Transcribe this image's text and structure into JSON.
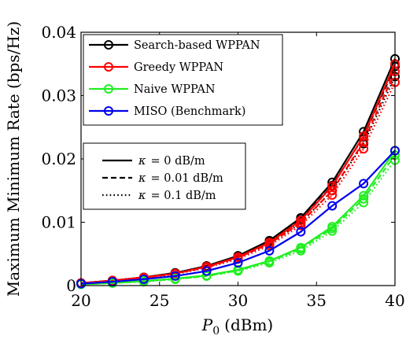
{
  "chart_data": {
    "type": "line",
    "title": "",
    "xlabel_var": "P",
    "xlabel_sub": "0",
    "xlabel_unit": "(dBm)",
    "ylabel": "Maximum Minimum Rate (bps/Hz)",
    "xlim": [
      20,
      40
    ],
    "ylim": [
      0,
      0.04
    ],
    "x_ticks": [
      20,
      25,
      30,
      35,
      40
    ],
    "x_tick_labels": [
      "20",
      "25",
      "30",
      "35",
      "40"
    ],
    "y_ticks": [
      0,
      0.01,
      0.02,
      0.03,
      0.04
    ],
    "y_tick_labels": [
      "0",
      "0.01",
      "0.02",
      "0.03",
      "0.04"
    ],
    "x": [
      20,
      22,
      24,
      26,
      28,
      30,
      32,
      34,
      36,
      38,
      40
    ],
    "grid": false,
    "legend_position": "top-left",
    "series": [
      {
        "name": "Search-based WPPAN",
        "color": "#000000",
        "kappa": "0 dB/m",
        "style": "solid",
        "marker": "circle",
        "values": [
          0.0004,
          0.0008,
          0.0013,
          0.002,
          0.0031,
          0.0047,
          0.0071,
          0.0107,
          0.0163,
          0.0243,
          0.0358
        ]
      },
      {
        "name": "Search-based WPPAN",
        "color": "#000000",
        "kappa": "0.01 dB/m",
        "style": "dashed",
        "marker": "circle",
        "values": [
          0.0004,
          0.0008,
          0.0013,
          0.002,
          0.003,
          0.0046,
          0.0069,
          0.0104,
          0.0158,
          0.0235,
          0.0346
        ]
      },
      {
        "name": "Search-based WPPAN",
        "color": "#000000",
        "kappa": "0.1 dB/m",
        "style": "dotted",
        "marker": "circle",
        "values": [
          0.0004,
          0.0007,
          0.0012,
          0.0019,
          0.0029,
          0.0044,
          0.0066,
          0.0099,
          0.015,
          0.0224,
          0.033
        ]
      },
      {
        "name": "Greedy WPPAN",
        "color": "#ff0000",
        "kappa": "0 dB/m",
        "style": "solid",
        "marker": "circle",
        "values": [
          0.0004,
          0.0008,
          0.0013,
          0.0019,
          0.003,
          0.0045,
          0.0068,
          0.0103,
          0.0157,
          0.0236,
          0.035
        ]
      },
      {
        "name": "Greedy WPPAN",
        "color": "#ff0000",
        "kappa": "0.01 dB/m",
        "style": "dashed",
        "marker": "circle",
        "values": [
          0.0004,
          0.0007,
          0.0012,
          0.0019,
          0.0029,
          0.0044,
          0.0066,
          0.0099,
          0.015,
          0.0227,
          0.0338
        ]
      },
      {
        "name": "Greedy WPPAN",
        "color": "#ff0000",
        "kappa": "0.1 dB/m",
        "style": "dotted",
        "marker": "circle",
        "values": [
          0.0004,
          0.0007,
          0.0012,
          0.0018,
          0.0028,
          0.0042,
          0.0063,
          0.0095,
          0.0143,
          0.0216,
          0.0321
        ]
      },
      {
        "name": "Naive WPPAN",
        "color": "#22ee22",
        "kappa": "0 dB/m",
        "style": "solid",
        "marker": "circle",
        "values": [
          0.0002,
          0.0004,
          0.0007,
          0.0011,
          0.0016,
          0.0025,
          0.0039,
          0.006,
          0.0093,
          0.0142,
          0.0213
        ]
      },
      {
        "name": "Naive WPPAN",
        "color": "#22ee22",
        "kappa": "0.01 dB/m",
        "style": "dashed",
        "marker": "circle",
        "values": [
          0.0002,
          0.0004,
          0.0007,
          0.001,
          0.0015,
          0.0024,
          0.0038,
          0.0058,
          0.009,
          0.0137,
          0.0206
        ]
      },
      {
        "name": "Naive WPPAN",
        "color": "#22ee22",
        "kappa": "0.1 dB/m",
        "style": "dotted",
        "marker": "circle",
        "values": [
          0.0002,
          0.0004,
          0.0006,
          0.001,
          0.0015,
          0.0023,
          0.0036,
          0.0055,
          0.0086,
          0.0131,
          0.0198
        ]
      },
      {
        "name": "MISO (Benchmark)",
        "color": "#0000ee",
        "kappa": "0 dB/m",
        "style": "solid",
        "marker": "circle",
        "values": [
          0.0003,
          0.0006,
          0.001,
          0.0015,
          0.0023,
          0.0036,
          0.0055,
          0.0085,
          0.0126,
          0.0161,
          0.0213
        ]
      }
    ],
    "legend_methods": [
      {
        "label": "Search-based WPPAN",
        "color": "#000000"
      },
      {
        "label": "Greedy WPPAN",
        "color": "#ff0000"
      },
      {
        "label": "Naive WPPAN",
        "color": "#22ee22"
      },
      {
        "label": "MISO (Benchmark)",
        "color": "#0000ee"
      }
    ],
    "legend_kappa": [
      {
        "style": "solid",
        "sym": "κ",
        "eq": "= 0 dB/m"
      },
      {
        "style": "dashed",
        "sym": "κ",
        "eq": "= 0.01 dB/m"
      },
      {
        "style": "dotted",
        "sym": "κ",
        "eq": "= 0.1 dB/m"
      }
    ]
  }
}
